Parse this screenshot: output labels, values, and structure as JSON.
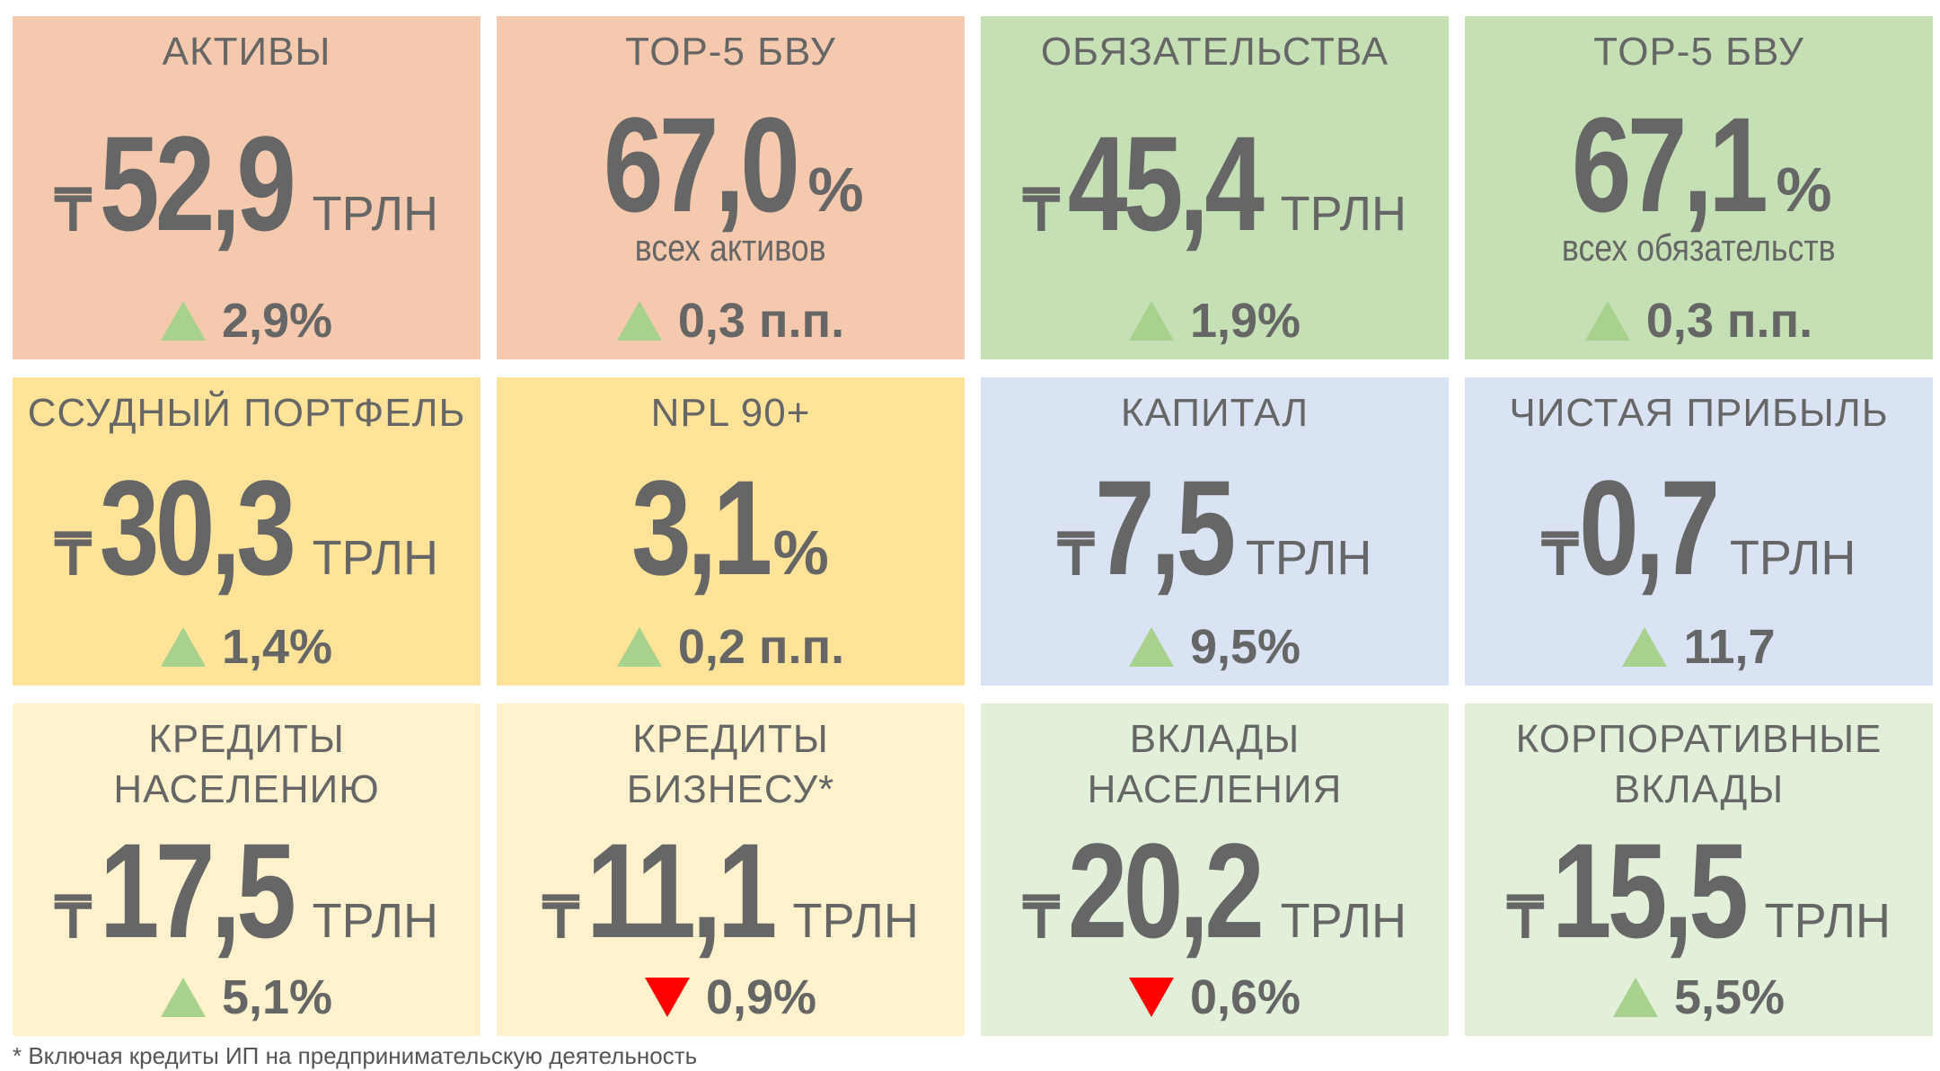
{
  "cards": [
    {
      "title": [
        "АКТИВЫ"
      ],
      "currency": "₸",
      "value": "52,9",
      "unit": "ТРЛН",
      "change": "2,9%",
      "direction": "up",
      "color": "#f5c9ad"
    },
    {
      "title": [
        "TOP-5 БВУ"
      ],
      "value": "67,0",
      "unit": "%",
      "subtitle": "всех активов",
      "change": "0,3 п.п.",
      "direction": "up",
      "color": "#f5c9ad"
    },
    {
      "title": [
        "ОБЯЗАТЕЛЬСТВА"
      ],
      "currency": "₸",
      "value": "45,4",
      "unit": "ТРЛН",
      "change": "1,9%",
      "direction": "up",
      "color": "#c5e0b4"
    },
    {
      "title": [
        "TOP-5 БВУ"
      ],
      "value": "67,1",
      "unit": "%",
      "subtitle": "всех обязательств",
      "change": "0,3 п.п.",
      "direction": "up",
      "color": "#c5e0b4"
    },
    {
      "title": [
        "ССУДНЫЙ ПОРТФЕЛЬ"
      ],
      "currency": "₸",
      "value": "30,3",
      "unit": "ТРЛН",
      "change": "1,4%",
      "direction": "up",
      "color": "#ffe399"
    },
    {
      "title": [
        "NPL 90+"
      ],
      "value": "3,1",
      "unit": "%",
      "change": "0,2 п.п.",
      "direction": "up",
      "color": "#ffe399"
    },
    {
      "title": [
        "КАПИТАЛ"
      ],
      "currency": "₸",
      "value": "7,5",
      "unit": "ТРЛН",
      "change": "9,5%",
      "direction": "up",
      "color": "#dae3f3"
    },
    {
      "title": [
        "ЧИСТАЯ ПРИБЫЛЬ"
      ],
      "currency": "₸",
      "value": "0,7",
      "unit": "ТРЛН",
      "change": "11,7",
      "direction": "up",
      "color": "#dae3f3"
    },
    {
      "title": [
        "КРЕДИТЫ",
        "НАСЕЛЕНИЮ"
      ],
      "currency": "₸",
      "value": "17,5",
      "unit": "ТРЛН",
      "change": "5,1%",
      "direction": "up",
      "color": "#fff2cc"
    },
    {
      "title": [
        "КРЕДИТЫ",
        "БИЗНЕСУ*"
      ],
      "currency": "₸",
      "value": "11,1",
      "unit": "ТРЛН",
      "change": "0,9%",
      "direction": "down",
      "color": "#fff2cc"
    },
    {
      "title": [
        "ВКЛАДЫ",
        "НАСЕЛЕНИЯ"
      ],
      "currency": "₸",
      "value": "20,2",
      "unit": "ТРЛН",
      "change": "0,6%",
      "direction": "down",
      "color": "#e2f0d9"
    },
    {
      "title": [
        "КОРПОРАТИВНЫЕ",
        "ВКЛАДЫ"
      ],
      "currency": "₸",
      "value": "15,5",
      "unit": "ТРЛН",
      "change": "5,5%",
      "direction": "up",
      "color": "#e2f0d9"
    }
  ],
  "footnote": "* Включая кредиты ИП на предпринимательскую деятельность"
}
